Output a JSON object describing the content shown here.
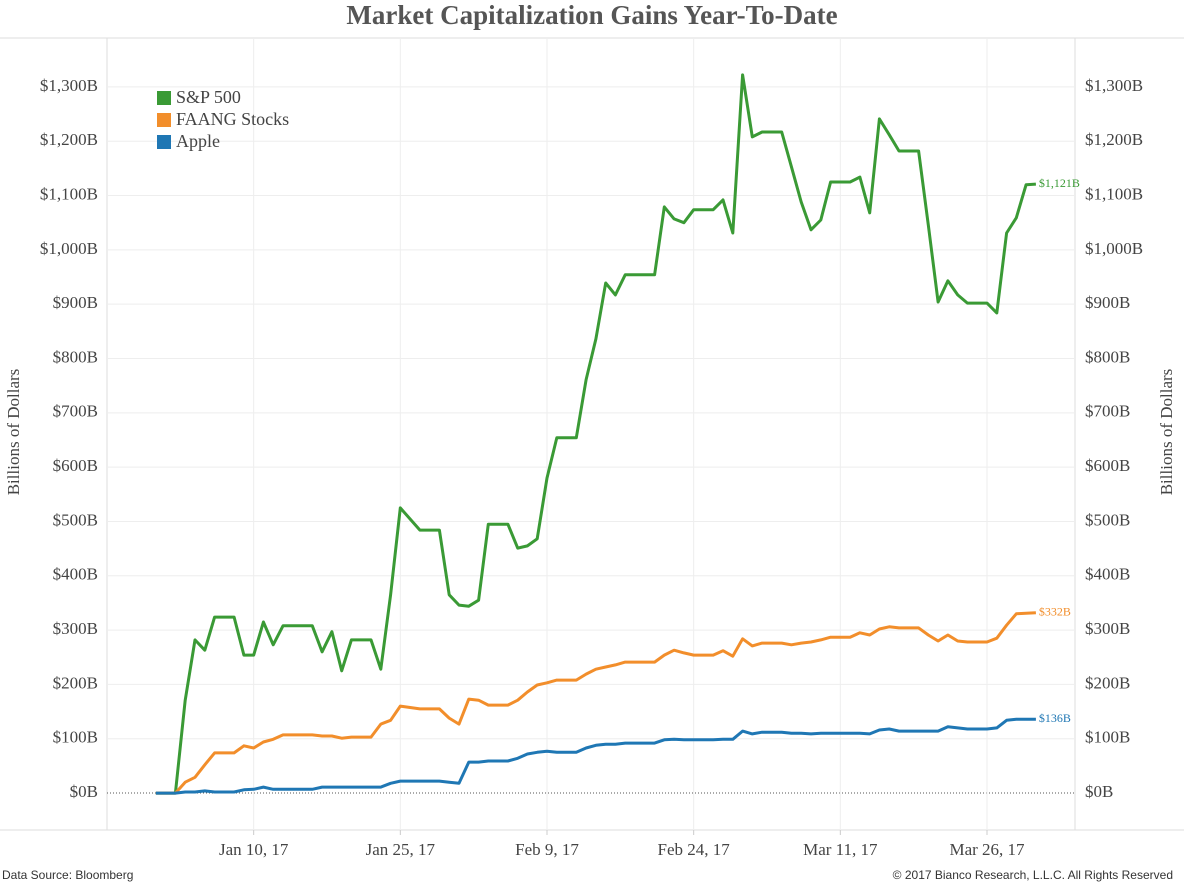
{
  "chart_data": {
    "type": "line",
    "title": "Market Capitalization Gains Year-To-Date",
    "y_label": "Billions of Dollars",
    "y2_label": "Billions of Dollars",
    "source": "Data Source: Bloomberg",
    "copyright": "© 2017 Bianco Research, L.L.C. All Rights Reserved",
    "legend": "top-left",
    "grid": true,
    "x": [
      "2016-12-31",
      "2017-01-02",
      "2017-01-03",
      "2017-01-04",
      "2017-01-05",
      "2017-01-06",
      "2017-01-08",
      "2017-01-09",
      "2017-01-10",
      "2017-01-11",
      "2017-01-12",
      "2017-01-13",
      "2017-01-16",
      "2017-01-17",
      "2017-01-18",
      "2017-01-19",
      "2017-01-20",
      "2017-01-22",
      "2017-01-23",
      "2017-01-24",
      "2017-01-25",
      "2017-01-27",
      "2017-01-29",
      "2017-01-30",
      "2017-01-31",
      "2017-02-01",
      "2017-02-02",
      "2017-02-03",
      "2017-02-05",
      "2017-02-06",
      "2017-02-07",
      "2017-02-08",
      "2017-02-09",
      "2017-02-10",
      "2017-02-12",
      "2017-02-13",
      "2017-02-14",
      "2017-02-15",
      "2017-02-16",
      "2017-02-17",
      "2017-02-20",
      "2017-02-21",
      "2017-02-22",
      "2017-02-23",
      "2017-02-24",
      "2017-02-26",
      "2017-02-27",
      "2017-02-28",
      "2017-03-01",
      "2017-03-02",
      "2017-03-03",
      "2017-03-05",
      "2017-03-06",
      "2017-03-07",
      "2017-03-08",
      "2017-03-09",
      "2017-03-10",
      "2017-03-12",
      "2017-03-13",
      "2017-03-14",
      "2017-03-15",
      "2017-03-16",
      "2017-03-17",
      "2017-03-19",
      "2017-03-20",
      "2017-03-21",
      "2017-03-22",
      "2017-03-23",
      "2017-03-24",
      "2017-03-26",
      "2017-03-27",
      "2017-03-28",
      "2017-03-29",
      "2017-03-30",
      "2017-03-31"
    ],
    "series": [
      {
        "name": "S&P 500",
        "color": "#3a9a35",
        "end_label": "$1,121B",
        "values": [
          0,
          0,
          171,
          282,
          263,
          324,
          324,
          254,
          254,
          315,
          273,
          308,
          308,
          260,
          297,
          225,
          282,
          282,
          228,
          365,
          525,
          484,
          484,
          365,
          346,
          344,
          355,
          495,
          495,
          451,
          455,
          468,
          580,
          654,
          654,
          761,
          836,
          939,
          917,
          954,
          954,
          1079,
          1057,
          1050,
          1074,
          1074,
          1092,
          1031,
          1322,
          1208,
          1217,
          1217,
          1153,
          1088,
          1037,
          1055,
          1125,
          1125,
          1134,
          1068,
          1241,
          1212,
          1182,
          1182,
          1046,
          904,
          943,
          917,
          902,
          902,
          884,
          1031,
          1059,
          1120,
          1121
        ]
      },
      {
        "name": "FAANG Stocks",
        "color": "#f28e2b",
        "end_label": "$332B",
        "values": [
          0,
          0,
          20,
          29,
          52,
          74,
          74,
          87,
          83,
          94,
          99,
          107,
          107,
          105,
          105,
          101,
          103,
          103,
          127,
          134,
          160,
          155,
          155,
          138,
          127,
          173,
          171,
          162,
          162,
          171,
          186,
          199,
          203,
          208,
          208,
          219,
          228,
          232,
          236,
          241,
          241,
          254,
          263,
          258,
          254,
          254,
          262,
          252,
          284,
          271,
          276,
          276,
          273,
          276,
          278,
          282,
          287,
          287,
          295,
          291,
          302,
          306,
          304,
          304,
          291,
          280,
          291,
          280,
          278,
          278,
          285,
          309,
          330,
          331,
          332
        ]
      },
      {
        "name": "Apple",
        "color": "#1f77b4",
        "end_label": "$136B",
        "values": [
          0,
          0,
          2,
          2,
          4,
          2,
          2,
          6,
          7,
          11,
          7,
          7,
          7,
          11,
          11,
          11,
          11,
          11,
          11,
          18,
          22,
          22,
          22,
          20,
          18,
          57,
          57,
          59,
          59,
          64,
          72,
          75,
          77,
          75,
          75,
          83,
          88,
          90,
          90,
          92,
          92,
          98,
          99,
          98,
          98,
          98,
          99,
          99,
          114,
          109,
          112,
          112,
          110,
          110,
          109,
          110,
          110,
          110,
          110,
          109,
          116,
          118,
          114,
          114,
          114,
          114,
          122,
          120,
          118,
          118,
          120,
          134,
          136,
          136,
          136
        ]
      }
    ],
    "xlim": [
      "2016-12-26",
      "2017-04-04"
    ],
    "xticks": [
      {
        "value": "2017-01-10",
        "label": "Jan 10, 17"
      },
      {
        "value": "2017-01-25",
        "label": "Jan 25, 17"
      },
      {
        "value": "2017-02-09",
        "label": "Feb 9, 17"
      },
      {
        "value": "2017-02-24",
        "label": "Feb 24, 17"
      },
      {
        "value": "2017-03-11",
        "label": "Mar 11, 17"
      },
      {
        "value": "2017-03-26",
        "label": "Mar 26, 17"
      }
    ],
    "ylim": [
      -68,
      1390
    ],
    "yticks": [
      {
        "value": 0,
        "label": "$0B"
      },
      {
        "value": 100,
        "label": "$100B"
      },
      {
        "value": 200,
        "label": "$200B"
      },
      {
        "value": 300,
        "label": "$300B"
      },
      {
        "value": 400,
        "label": "$400B"
      },
      {
        "value": 500,
        "label": "$500B"
      },
      {
        "value": 600,
        "label": "$600B"
      },
      {
        "value": 700,
        "label": "$700B"
      },
      {
        "value": 800,
        "label": "$800B"
      },
      {
        "value": 900,
        "label": "$900B"
      },
      {
        "value": 1000,
        "label": "$1,000B"
      },
      {
        "value": 1100,
        "label": "$1,100B"
      },
      {
        "value": 1200,
        "label": "$1,200B"
      },
      {
        "value": 1300,
        "label": "$1,300B"
      }
    ],
    "y2lim": [
      -68,
      1390
    ],
    "y2ticks": [
      {
        "value": 0,
        "label": "$0B"
      },
      {
        "value": 100,
        "label": "$100B"
      },
      {
        "value": 200,
        "label": "$200B"
      },
      {
        "value": 300,
        "label": "$300B"
      },
      {
        "value": 400,
        "label": "$400B"
      },
      {
        "value": 500,
        "label": "$500B"
      },
      {
        "value": 600,
        "label": "$600B"
      },
      {
        "value": 700,
        "label": "$700B"
      },
      {
        "value": 800,
        "label": "$800B"
      },
      {
        "value": 900,
        "label": "$900B"
      },
      {
        "value": 1000,
        "label": "$1,000B"
      },
      {
        "value": 1100,
        "label": "$1,100B"
      },
      {
        "value": 1200,
        "label": "$1,200B"
      },
      {
        "value": 1300,
        "label": "$1,300B"
      }
    ]
  }
}
